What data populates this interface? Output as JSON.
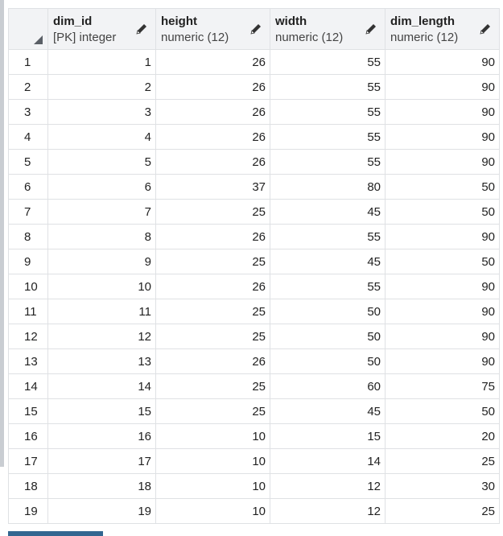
{
  "columns": [
    {
      "name": "dim_id",
      "type": "[PK] integer",
      "icon": "pencil-icon"
    },
    {
      "name": "height",
      "type": "numeric (12)",
      "icon": "pencil-icon"
    },
    {
      "name": "width",
      "type": "numeric (12)",
      "icon": "pencil-icon"
    },
    {
      "name": "dim_length",
      "type": "numeric (12)",
      "icon": "pencil-icon"
    }
  ],
  "rows": [
    {
      "row": "1",
      "dim_id": "1",
      "height": "26",
      "width": "55",
      "dim_length": "90"
    },
    {
      "row": "2",
      "dim_id": "2",
      "height": "26",
      "width": "55",
      "dim_length": "90"
    },
    {
      "row": "3",
      "dim_id": "3",
      "height": "26",
      "width": "55",
      "dim_length": "90"
    },
    {
      "row": "4",
      "dim_id": "4",
      "height": "26",
      "width": "55",
      "dim_length": "90"
    },
    {
      "row": "5",
      "dim_id": "5",
      "height": "26",
      "width": "55",
      "dim_length": "90"
    },
    {
      "row": "6",
      "dim_id": "6",
      "height": "37",
      "width": "80",
      "dim_length": "50"
    },
    {
      "row": "7",
      "dim_id": "7",
      "height": "25",
      "width": "45",
      "dim_length": "50"
    },
    {
      "row": "8",
      "dim_id": "8",
      "height": "26",
      "width": "55",
      "dim_length": "90"
    },
    {
      "row": "9",
      "dim_id": "9",
      "height": "25",
      "width": "45",
      "dim_length": "50"
    },
    {
      "row": "10",
      "dim_id": "10",
      "height": "26",
      "width": "55",
      "dim_length": "90"
    },
    {
      "row": "11",
      "dim_id": "11",
      "height": "25",
      "width": "50",
      "dim_length": "90"
    },
    {
      "row": "12",
      "dim_id": "12",
      "height": "25",
      "width": "50",
      "dim_length": "90"
    },
    {
      "row": "13",
      "dim_id": "13",
      "height": "26",
      "width": "50",
      "dim_length": "90"
    },
    {
      "row": "14",
      "dim_id": "14",
      "height": "25",
      "width": "60",
      "dim_length": "75"
    },
    {
      "row": "15",
      "dim_id": "15",
      "height": "25",
      "width": "45",
      "dim_length": "50"
    },
    {
      "row": "16",
      "dim_id": "16",
      "height": "10",
      "width": "15",
      "dim_length": "20"
    },
    {
      "row": "17",
      "dim_id": "17",
      "height": "10",
      "width": "14",
      "dim_length": "25"
    },
    {
      "row": "18",
      "dim_id": "18",
      "height": "10",
      "width": "12",
      "dim_length": "30"
    },
    {
      "row": "19",
      "dim_id": "19",
      "height": "10",
      "width": "12",
      "dim_length": "25"
    }
  ],
  "colors": {
    "header_bg": "#f2f3f5",
    "grid_line": "#dfe1e4",
    "accent": "#326690"
  }
}
